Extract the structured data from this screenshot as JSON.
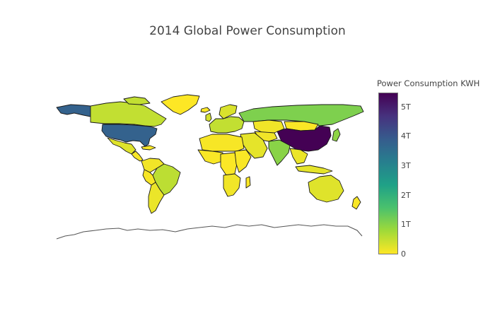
{
  "title": "2014 Global Power Consumption",
  "colorbar": {
    "title": "Power Consumption KWH",
    "min": 0,
    "max": 5.5,
    "unit_scale": "T",
    "colors": [
      "#fde725",
      "#a0da39",
      "#4ac16d",
      "#1fa187",
      "#277f8e",
      "#365c8d",
      "#46327e",
      "#440154"
    ],
    "ticks": [
      {
        "value": 0,
        "label": "0"
      },
      {
        "value": 1,
        "label": "1T"
      },
      {
        "value": 2,
        "label": "2T"
      },
      {
        "value": 3,
        "label": "3T"
      },
      {
        "value": 4,
        "label": "4T"
      },
      {
        "value": 5,
        "label": "5T"
      }
    ]
  },
  "regions": [
    {
      "name": "China",
      "value": 5.5
    },
    {
      "name": "United States",
      "value": 3.8
    },
    {
      "name": "Alaska",
      "value": 3.8
    },
    {
      "name": "Russia",
      "value": 1.1
    },
    {
      "name": "India",
      "value": 1.0
    },
    {
      "name": "Canada",
      "value": 0.5
    },
    {
      "name": "Brazil",
      "value": 0.55
    },
    {
      "name": "Europe",
      "value": 0.5
    },
    {
      "name": "Japan",
      "value": 0.95
    },
    {
      "name": "Kazakhstan",
      "value": 0.1
    },
    {
      "name": "Mongolia",
      "value": 0.02
    },
    {
      "name": "Middle East",
      "value": 0.2
    },
    {
      "name": "Central Asia",
      "value": 0.1
    },
    {
      "name": "Greenland",
      "value": 0.0
    },
    {
      "name": "Mexico",
      "value": 0.25
    },
    {
      "name": "Central America",
      "value": 0.05
    },
    {
      "name": "Caribbean",
      "value": 0.05
    },
    {
      "name": "Northern South America",
      "value": 0.1
    },
    {
      "name": "Peru Bolivia",
      "value": 0.05
    },
    {
      "name": "Southern Cone",
      "value": 0.15
    },
    {
      "name": "North Africa",
      "value": 0.05
    },
    {
      "name": "West Africa",
      "value": 0.03
    },
    {
      "name": "Central Africa",
      "value": 0.02
    },
    {
      "name": "East Africa",
      "value": 0.03
    },
    {
      "name": "Southern Africa",
      "value": 0.1
    },
    {
      "name": "Madagascar",
      "value": 0.01
    },
    {
      "name": "Southeast Asia",
      "value": 0.15
    },
    {
      "name": "Indonesia",
      "value": 0.2
    },
    {
      "name": "Australia",
      "value": 0.25
    },
    {
      "name": "New Zealand",
      "value": 0.04
    },
    {
      "name": "UK",
      "value": 0.35
    },
    {
      "name": "Scandinavia",
      "value": 0.3
    },
    {
      "name": "Iceland",
      "value": 0.02
    }
  ]
}
